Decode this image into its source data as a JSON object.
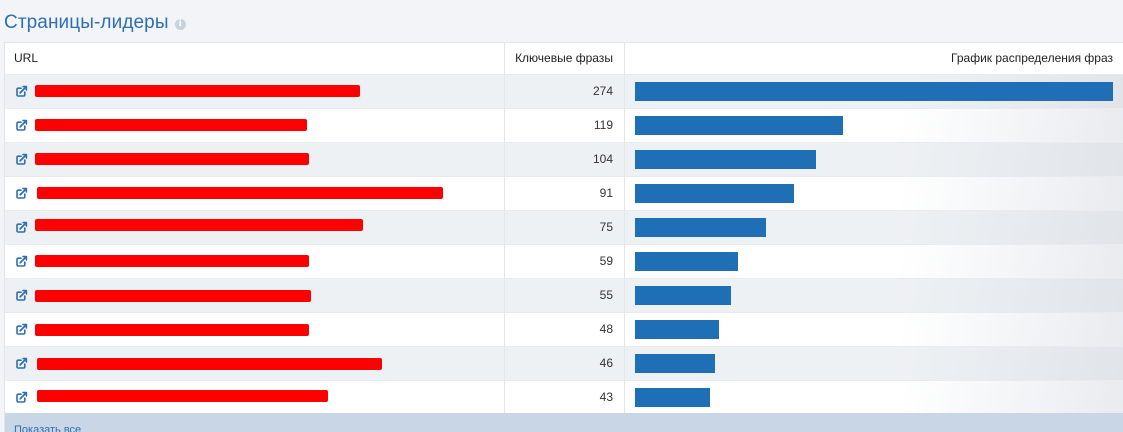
{
  "widget": {
    "title": "Страницы-лидеры",
    "info_icon": "info-icon"
  },
  "table": {
    "columns": {
      "url": "URL",
      "keywords": "Ключевые фразы",
      "chart": "График распределения фраз"
    },
    "max_value": 274,
    "rows": [
      {
        "keywords": "274",
        "value": 274,
        "url_redacted": true
      },
      {
        "keywords": "119",
        "value": 119,
        "url_redacted": true
      },
      {
        "keywords": "104",
        "value": 104,
        "url_redacted": true
      },
      {
        "keywords": "91",
        "value": 91,
        "url_redacted": true
      },
      {
        "keywords": "75",
        "value": 75,
        "url_redacted": true
      },
      {
        "keywords": "59",
        "value": 59,
        "url_redacted": true
      },
      {
        "keywords": "55",
        "value": 55,
        "url_redacted": true
      },
      {
        "keywords": "48",
        "value": 48,
        "url_redacted": true
      },
      {
        "keywords": "46",
        "value": 46,
        "url_redacted": true
      },
      {
        "keywords": "43",
        "value": 43,
        "url_redacted": true
      }
    ]
  },
  "footer": {
    "show_all_label": "Показать все"
  },
  "colors": {
    "accent": "#2f6fb3",
    "bar": "#1f6fb7",
    "redaction": "#ff0000"
  }
}
